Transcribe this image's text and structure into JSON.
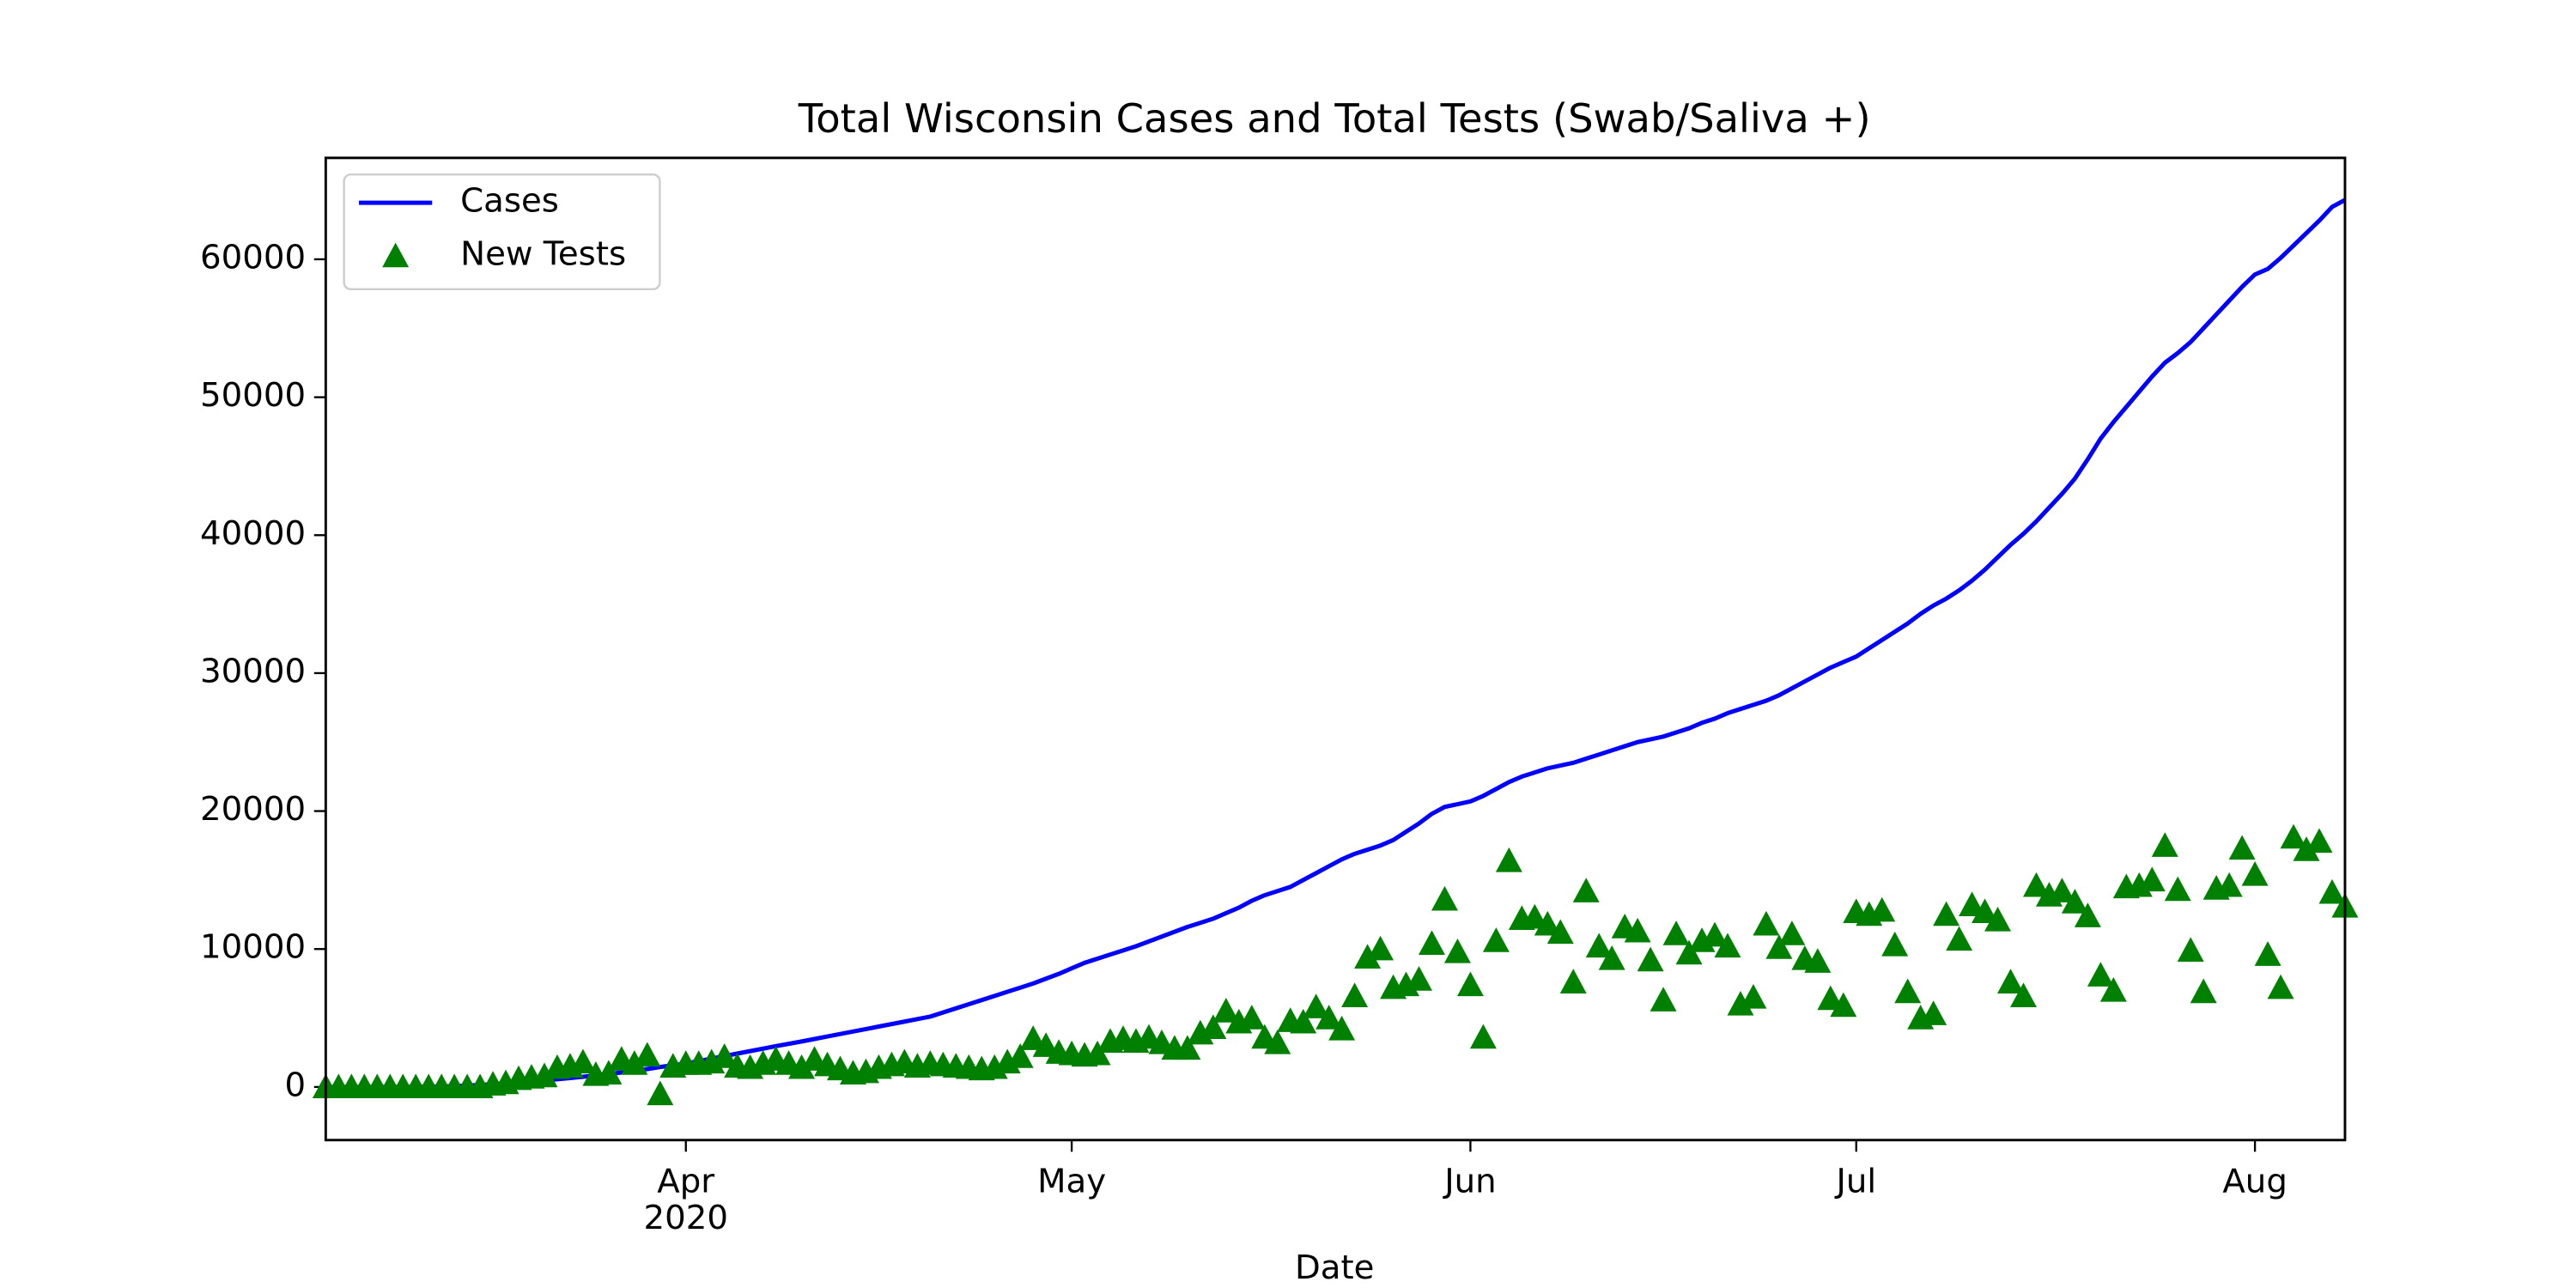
{
  "chart_data": {
    "type": "line",
    "title": "Total Wisconsin Cases and Total Tests (Swab/Saliva +)",
    "xlabel": "Date",
    "year_label": "2020",
    "legend": "upper left",
    "categories": [
      null,
      null,
      null,
      null,
      null,
      null,
      null,
      null,
      null,
      null,
      null,
      null,
      null,
      null,
      null,
      null,
      null,
      null,
      null,
      null,
      null,
      null,
      null,
      null,
      null,
      null,
      null,
      null,
      "Apr",
      null,
      null,
      null,
      null,
      null,
      null,
      null,
      null,
      null,
      null,
      null,
      null,
      null,
      null,
      null,
      null,
      null,
      null,
      null,
      null,
      null,
      null,
      null,
      null,
      null,
      null,
      null,
      null,
      null,
      "May",
      null,
      null,
      null,
      null,
      null,
      null,
      null,
      null,
      null,
      null,
      null,
      null,
      null,
      null,
      null,
      null,
      null,
      null,
      null,
      null,
      null,
      null,
      null,
      null,
      null,
      null,
      null,
      null,
      null,
      null,
      "Jun",
      null,
      null,
      null,
      null,
      null,
      null,
      null,
      null,
      null,
      null,
      null,
      null,
      null,
      null,
      null,
      null,
      null,
      null,
      null,
      null,
      null,
      null,
      null,
      null,
      null,
      null,
      null,
      null,
      null,
      "Jul",
      null,
      null,
      null,
      null,
      null,
      null,
      null,
      null,
      null,
      null,
      null,
      null,
      null,
      null,
      null,
      null,
      null,
      null,
      null,
      null,
      null,
      null,
      null,
      null,
      null,
      null,
      null,
      null,
      null,
      null,
      "Aug",
      null,
      null,
      null,
      null,
      null,
      null,
      null
    ],
    "series": [
      {
        "name": "Cases",
        "color": "#0000ff",
        "style": "line",
        "values": [
          0,
          0,
          0,
          0,
          0,
          0,
          0,
          10,
          20,
          40,
          60,
          100,
          150,
          200,
          260,
          330,
          400,
          480,
          560,
          650,
          740,
          840,
          940,
          1050,
          1150,
          1300,
          1450,
          1580,
          1700,
          1880,
          2060,
          2240,
          2420,
          2600,
          2780,
          2960,
          3130,
          3300,
          3480,
          3660,
          3840,
          4020,
          4200,
          4380,
          4560,
          4740,
          4920,
          5100,
          5400,
          5700,
          6000,
          6300,
          6600,
          6900,
          7200,
          7500,
          7850,
          8200,
          8600,
          9000,
          9300,
          9600,
          9900,
          10200,
          10550,
          10900,
          11250,
          11600,
          11900,
          12200,
          12600,
          13000,
          13500,
          13900,
          14200,
          14500,
          15000,
          15500,
          16000,
          16500,
          16900,
          17200,
          17500,
          17900,
          18500,
          19100,
          19800,
          20300,
          20500,
          20700,
          21100,
          21600,
          22100,
          22500,
          22800,
          23100,
          23300,
          23500,
          23800,
          24100,
          24400,
          24700,
          25000,
          25200,
          25400,
          25700,
          26000,
          26400,
          26700,
          27100,
          27400,
          27700,
          28000,
          28400,
          28900,
          29400,
          29900,
          30400,
          30800,
          31200,
          31800,
          32400,
          33000,
          33600,
          34300,
          34900,
          35400,
          36000,
          36700,
          37500,
          38400,
          39300,
          40100,
          41000,
          42000,
          43000,
          44100,
          45500,
          47000,
          48200,
          49300,
          50400,
          51500,
          52500,
          53200,
          54000,
          55000,
          56000,
          57000,
          58000,
          58900,
          59300,
          60100,
          61000,
          61900,
          62800,
          63800,
          64300
        ]
      },
      {
        "name": "New Tests",
        "color": "#008000",
        "style": "markers",
        "values": [
          0,
          0,
          0,
          0,
          0,
          0,
          0,
          0,
          0,
          0,
          0,
          0,
          0,
          200,
          300,
          600,
          700,
          800,
          1400,
          1500,
          1800,
          900,
          1000,
          2000,
          1700,
          2300,
          -500,
          1500,
          1700,
          1700,
          1800,
          2200,
          1500,
          1400,
          1700,
          2000,
          1700,
          1400,
          2000,
          1600,
          1300,
          1000,
          1100,
          1400,
          1600,
          1800,
          1500,
          1700,
          1600,
          1500,
          1400,
          1300,
          1400,
          1800,
          2200,
          3500,
          3000,
          2500,
          2400,
          2300,
          2400,
          3300,
          3500,
          3300,
          3600,
          3200,
          2800,
          2800,
          3900,
          4300,
          5500,
          4700,
          5000,
          3600,
          3200,
          4800,
          4700,
          5800,
          5000,
          4200,
          6600,
          9400,
          10000,
          7200,
          7400,
          7800,
          10400,
          13600,
          9800,
          7400,
          3600,
          10600,
          16400,
          12200,
          12300,
          11800,
          11200,
          7600,
          14200,
          10200,
          9300,
          11600,
          11300,
          9200,
          6300,
          11100,
          9700,
          10600,
          11000,
          10200,
          6000,
          6500,
          11800,
          10100,
          11100,
          9300,
          9100,
          6400,
          5900,
          12700,
          12500,
          12800,
          10300,
          6900,
          5000,
          5300,
          12500,
          10700,
          13200,
          12700,
          12100,
          7600,
          6600,
          14600,
          13900,
          14200,
          13400,
          12400,
          8100,
          7000,
          14500,
          14600,
          15000,
          17500,
          14300,
          9900,
          6900,
          14400,
          14600,
          17300,
          15400,
          9600,
          7200,
          18100,
          17200,
          17800,
          14100,
          13100
        ]
      }
    ],
    "ylim": [
      -3850,
      67350
    ],
    "yticks": [
      0,
      10000,
      20000,
      30000,
      40000,
      50000,
      60000
    ]
  }
}
